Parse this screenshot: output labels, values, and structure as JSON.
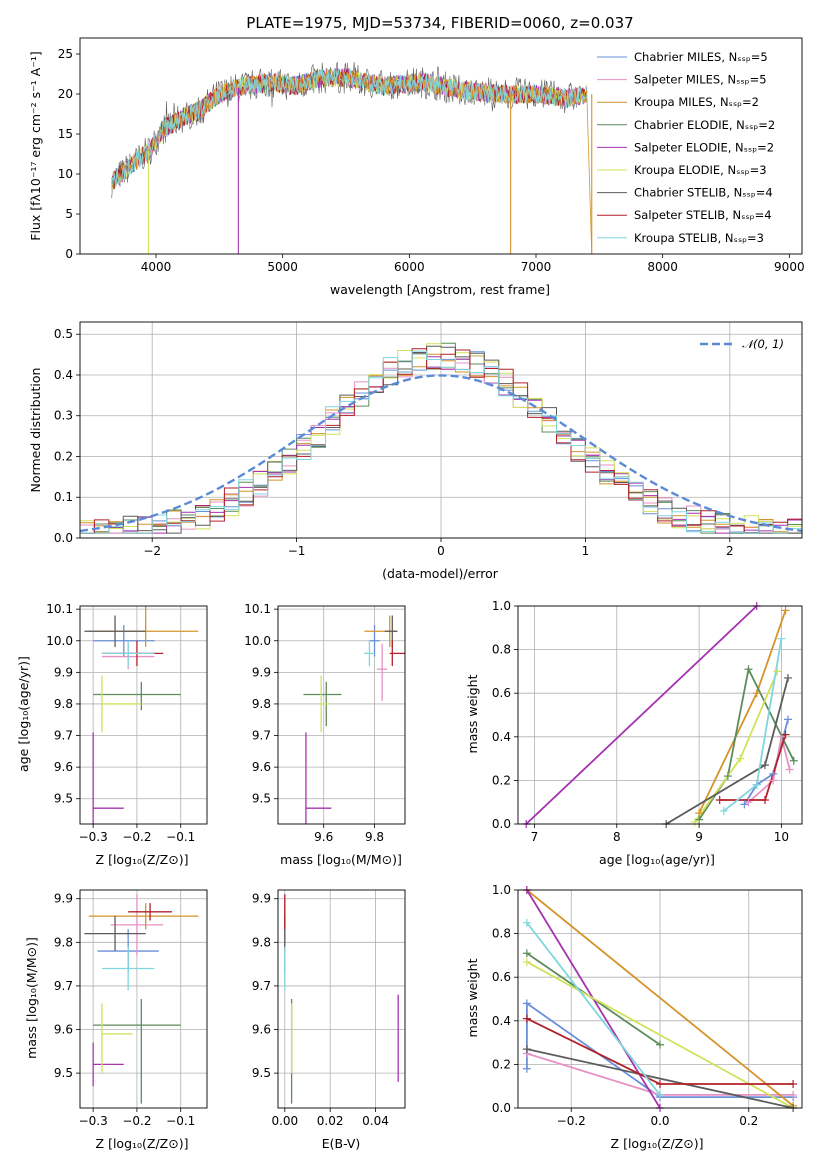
{
  "colors": [
    "#6a8fd8",
    "#e891c4",
    "#d4942a",
    "#5c8c5c",
    "#a632b0",
    "#d0e25a",
    "#5c5c5c",
    "#b2202a",
    "#7fd6df"
  ],
  "chart_data": [
    {
      "id": "spectrum",
      "type": "line",
      "title": "PLATE=1975, MJD=53734, FIBERID=0060, z=0.037",
      "xlabel": "wavelength [Angstrom, rest frame]",
      "ylabel": "Flux [fλ10⁻¹⁷ erg cm⁻² s⁻¹ A⁻¹]",
      "xlim": [
        3400,
        9100
      ],
      "ylim": [
        0,
        27
      ],
      "xticks": [
        4000,
        5000,
        6000,
        7000,
        8000,
        9000
      ],
      "yticks": [
        0,
        5,
        10,
        15,
        20,
        25
      ],
      "x": [
        3650,
        3800,
        3950,
        4050,
        4200,
        4350,
        4500,
        4700,
        4900,
        5100,
        5300,
        5500,
        5800,
        6100,
        6400,
        6700,
        7000,
        7250,
        7400
      ],
      "y": [
        9,
        11,
        13,
        15.5,
        17,
        18,
        20,
        21,
        21.5,
        21,
        22,
        22,
        21,
        21.5,
        20.5,
        20,
        20,
        19.5,
        20
      ],
      "legend": [
        "Chabrier MILES, Nₛₛₚ=5",
        "Salpeter MILES, Nₛₛₚ=5",
        "Kroupa MILES, Nₛₛₚ=2",
        "Chabrier ELODIE, Nₛₛₚ=2",
        "Salpeter ELODIE, Nₛₛₚ=2",
        "Kroupa ELODIE, Nₛₛₚ=3",
        "Chabrier STELIB, Nₛₛₚ=4",
        "Salpeter STELIB, Nₛₛₚ=4",
        "Kroupa STELIB, Nₛₛₚ=3"
      ],
      "legend_loc": "upper-right"
    },
    {
      "id": "residuals",
      "type": "line",
      "xlabel": "(data-model)/error",
      "ylabel": "Normed distribution",
      "xlim": [
        -2.5,
        2.5
      ],
      "ylim": [
        0,
        0.53
      ],
      "xticks": [
        -2,
        -1,
        0,
        1,
        2
      ],
      "xtick_labels": [
        "−2",
        "−1",
        "0",
        "1",
        "2"
      ],
      "yticks": [
        0.0,
        0.1,
        0.2,
        0.3,
        0.4,
        0.5
      ],
      "ytick_labels": [
        "0.0",
        "0.1",
        "0.2",
        "0.3",
        "0.4",
        "0.5"
      ],
      "legend": [
        "𝒩(0, 1)"
      ],
      "legend_loc": "upper-right",
      "grid": true
    },
    {
      "id": "age_vs_Z",
      "type": "scatter",
      "xlabel": "Z [log₁₀(Z/Z⊙)]",
      "ylabel": "age  [log₁₀(age/yr)]",
      "xlim": [
        -0.33,
        -0.04
      ],
      "ylim": [
        9.42,
        10.11
      ],
      "xticks": [
        -0.3,
        -0.2,
        -0.1
      ],
      "xtick_labels": [
        "−0.3",
        "−0.2",
        "−0.1"
      ],
      "yticks": [
        9.5,
        9.6,
        9.7,
        9.8,
        9.9,
        10.0,
        10.1
      ],
      "ytick_labels": [
        "9.5",
        "9.6",
        "9.7",
        "9.8",
        "9.9",
        "10.0",
        "10.1"
      ],
      "grid": true
    },
    {
      "id": "age_vs_mass",
      "type": "scatter",
      "xlabel": "mass [log₁₀(M/M⊙)]",
      "xlim": [
        9.42,
        9.92
      ],
      "ylim": [
        9.42,
        10.11
      ],
      "xticks": [
        9.6,
        9.8
      ],
      "xtick_labels": [
        "9.6",
        "9.8"
      ],
      "yticks": [
        9.5,
        9.6,
        9.7,
        9.8,
        9.9,
        10.0,
        10.1
      ],
      "ytick_labels": [
        "9.5",
        "9.6",
        "9.7",
        "9.8",
        "9.9",
        "10.0",
        "10.1"
      ],
      "grid": true
    },
    {
      "id": "cumulative_age",
      "type": "line",
      "xlabel": "age  [log₁₀(age/yr)]",
      "ylabel": "mass weight",
      "xlim": [
        6.8,
        10.25
      ],
      "ylim": [
        0,
        1
      ],
      "xticks": [
        7,
        8,
        9,
        10
      ],
      "xtick_labels": [
        "7",
        "8",
        "9",
        "10"
      ],
      "yticks": [
        0,
        0.2,
        0.4,
        0.6,
        0.8,
        1.0
      ],
      "ytick_labels": [
        "0.0",
        "0.2",
        "0.4",
        "0.6",
        "0.8",
        "1.0"
      ],
      "grid": true
    },
    {
      "id": "mass_vs_Z",
      "type": "scatter",
      "xlabel": "Z [log₁₀(Z/Z⊙)]",
      "ylabel": "mass [log₁₀(M/M⊙)]",
      "xlim": [
        -0.33,
        -0.04
      ],
      "ylim": [
        9.42,
        9.92
      ],
      "xticks": [
        -0.3,
        -0.2,
        -0.1
      ],
      "xtick_labels": [
        "−0.3",
        "−0.2",
        "−0.1"
      ],
      "yticks": [
        9.5,
        9.6,
        9.7,
        9.8,
        9.9
      ],
      "ytick_labels": [
        "9.5",
        "9.6",
        "9.7",
        "9.8",
        "9.9"
      ],
      "grid": true
    },
    {
      "id": "mass_vs_EBV",
      "type": "scatter",
      "xlabel": "E(B-V)",
      "xlim": [
        -0.003,
        0.053
      ],
      "ylim": [
        9.42,
        9.92
      ],
      "xticks": [
        0.0,
        0.02,
        0.04
      ],
      "xtick_labels": [
        "0.00",
        "0.02",
        "0.04"
      ],
      "yticks": [
        9.5,
        9.6,
        9.7,
        9.8,
        9.9
      ],
      "ytick_labels": [
        "9.5",
        "9.6",
        "9.7",
        "9.8",
        "9.9"
      ],
      "grid": true
    },
    {
      "id": "cumulative_Z",
      "type": "line",
      "xlabel": "Z [log₁₀(Z/Z⊙)]",
      "ylabel": "mass weight",
      "xlim": [
        -0.32,
        0.32
      ],
      "ylim": [
        0,
        1
      ],
      "xticks": [
        -0.2,
        0.0,
        0.2
      ],
      "xtick_labels": [
        "−0.2",
        "0.0",
        "0.2"
      ],
      "yticks": [
        0,
        0.2,
        0.4,
        0.6,
        0.8,
        1.0
      ],
      "ytick_labels": [
        "0.0",
        "0.2",
        "0.4",
        "0.6",
        "0.8",
        "1.0"
      ],
      "grid": true
    }
  ],
  "points": {
    "age_Z": [
      [
        -0.23,
        10.0,
        0.07,
        0.07,
        0.05,
        0.05
      ],
      [
        -0.22,
        9.95,
        0.06,
        0.06,
        0.04,
        0.04
      ],
      [
        -0.18,
        10.03,
        0.13,
        0.12,
        0.05,
        0.19
      ],
      [
        -0.19,
        9.83,
        0.11,
        0.09,
        0.05,
        0.04
      ],
      [
        -0.3,
        9.47,
        0.0,
        0.07,
        0.24,
        0.24
      ],
      [
        -0.28,
        9.8,
        0.0,
        0.09,
        0.09,
        0.09
      ],
      [
        -0.25,
        10.03,
        0.07,
        0.07,
        0.05,
        0.05
      ],
      [
        -0.2,
        9.96,
        0.08,
        0.06,
        0.04,
        0.04
      ],
      [
        -0.22,
        9.96,
        0.06,
        0.06,
        0.04,
        0.04
      ]
    ],
    "age_mass": [
      [
        9.8,
        10.0,
        0.02,
        0.02,
        0.05,
        0.05
      ],
      [
        9.83,
        9.91,
        0.02,
        0.02,
        0.1,
        0.08
      ],
      [
        9.86,
        10.03,
        0.1,
        0.03,
        0.05,
        0.05
      ],
      [
        9.61,
        9.83,
        0.09,
        0.06,
        0.1,
        0.04
      ],
      [
        9.53,
        9.47,
        0.0,
        0.1,
        0.24,
        0.24
      ],
      [
        9.59,
        9.8,
        0.0,
        0.03,
        0.09,
        0.09
      ],
      [
        9.87,
        10.03,
        0.03,
        0.02,
        0.05,
        0.05
      ],
      [
        9.87,
        9.96,
        0.01,
        0.05,
        0.04,
        0.04
      ],
      [
        9.78,
        9.96,
        0.02,
        0.02,
        0.04,
        0.04
      ]
    ],
    "mass_Z": [
      [
        -0.22,
        9.78,
        0.07,
        0.07,
        0.05,
        0.05
      ],
      [
        -0.2,
        9.84,
        0.06,
        0.06,
        0.07,
        0.07
      ],
      [
        -0.18,
        9.86,
        0.13,
        0.12,
        0.03,
        0.03
      ],
      [
        -0.19,
        9.61,
        0.11,
        0.09,
        0.18,
        0.06
      ],
      [
        -0.3,
        9.52,
        0.0,
        0.07,
        0.05,
        0.05
      ],
      [
        -0.28,
        9.59,
        0.0,
        0.07,
        0.09,
        0.07
      ],
      [
        -0.25,
        9.82,
        0.07,
        0.07,
        0.04,
        0.04
      ],
      [
        -0.17,
        9.87,
        0.05,
        0.05,
        0.02,
        0.02
      ],
      [
        -0.22,
        9.74,
        0.06,
        0.06,
        0.05,
        0.05
      ]
    ],
    "mass_ebv": [
      [
        0.0,
        9.78,
        0.0,
        0.0,
        0.05,
        0.05
      ],
      [
        0.0,
        9.84,
        0.0,
        0.0,
        0.07,
        0.07
      ],
      [
        0.0,
        9.86,
        0.0,
        0.0,
        0.03,
        0.03
      ],
      [
        0.003,
        9.61,
        0.0,
        0.0,
        0.18,
        0.06
      ],
      [
        0.05,
        9.58,
        0.0,
        0.0,
        0.1,
        0.1
      ],
      [
        0.003,
        9.59,
        0.0,
        0.0,
        0.09,
        0.07
      ],
      [
        0.0,
        9.82,
        0.0,
        0.0,
        0.04,
        0.04
      ],
      [
        0.0,
        9.87,
        0.0,
        0.0,
        0.04,
        0.04
      ],
      [
        0.0,
        9.74,
        0.0,
        0.0,
        0.05,
        0.05
      ]
    ]
  },
  "cumulative_age": [
    [
      [
        9.55,
        0.09
      ],
      [
        9.7,
        0.18
      ],
      [
        9.9,
        0.23
      ],
      [
        10.08,
        0.48
      ]
    ],
    [
      [
        9.6,
        0.1
      ],
      [
        9.9,
        0.2
      ],
      [
        10.0,
        0.4
      ],
      [
        10.1,
        0.25
      ]
    ],
    [
      [
        9.0,
        0.05
      ],
      [
        9.7,
        0.6
      ],
      [
        10.05,
        0.98
      ]
    ],
    [
      [
        9.0,
        0.02
      ],
      [
        9.35,
        0.22
      ],
      [
        9.6,
        0.71
      ],
      [
        10.15,
        0.29
      ]
    ],
    [
      [
        6.9,
        0.0
      ],
      [
        9.7,
        1.0
      ]
    ],
    [
      [
        8.95,
        0.01
      ],
      [
        9.5,
        0.3
      ],
      [
        9.95,
        0.7
      ]
    ],
    [
      [
        8.6,
        0.0
      ],
      [
        9.8,
        0.27
      ],
      [
        10.08,
        0.67
      ]
    ],
    [
      [
        9.25,
        0.11
      ],
      [
        9.8,
        0.11
      ],
      [
        10.05,
        0.41
      ]
    ],
    [
      [
        9.3,
        0.06
      ],
      [
        9.7,
        0.18
      ],
      [
        10.0,
        0.85
      ]
    ]
  ],
  "cumulative_Z": [
    [
      [
        -0.3,
        0.18
      ],
      [
        -0.3,
        0.48
      ],
      [
        0.0,
        0.05
      ],
      [
        0.3,
        0.05
      ]
    ],
    [
      [
        -0.3,
        0.25
      ],
      [
        0.0,
        0.06
      ],
      [
        0.3,
        0.06
      ]
    ],
    [
      [
        -0.3,
        1.0
      ],
      [
        0.3,
        0.01
      ]
    ],
    [
      [
        -0.3,
        0.71
      ],
      [
        0.0,
        0.29
      ]
    ],
    [
      [
        -0.3,
        1.0
      ],
      [
        0.0,
        0.0
      ]
    ],
    [
      [
        -0.3,
        0.67
      ],
      [
        0.3,
        0.0
      ]
    ],
    [
      [
        -0.3,
        0.27
      ],
      [
        0.3,
        0.0
      ]
    ],
    [
      [
        -0.3,
        0.41
      ],
      [
        0.0,
        0.11
      ],
      [
        0.3,
        0.11
      ]
    ],
    [
      [
        -0.3,
        0.85
      ],
      [
        0.0,
        0.06
      ]
    ]
  ]
}
